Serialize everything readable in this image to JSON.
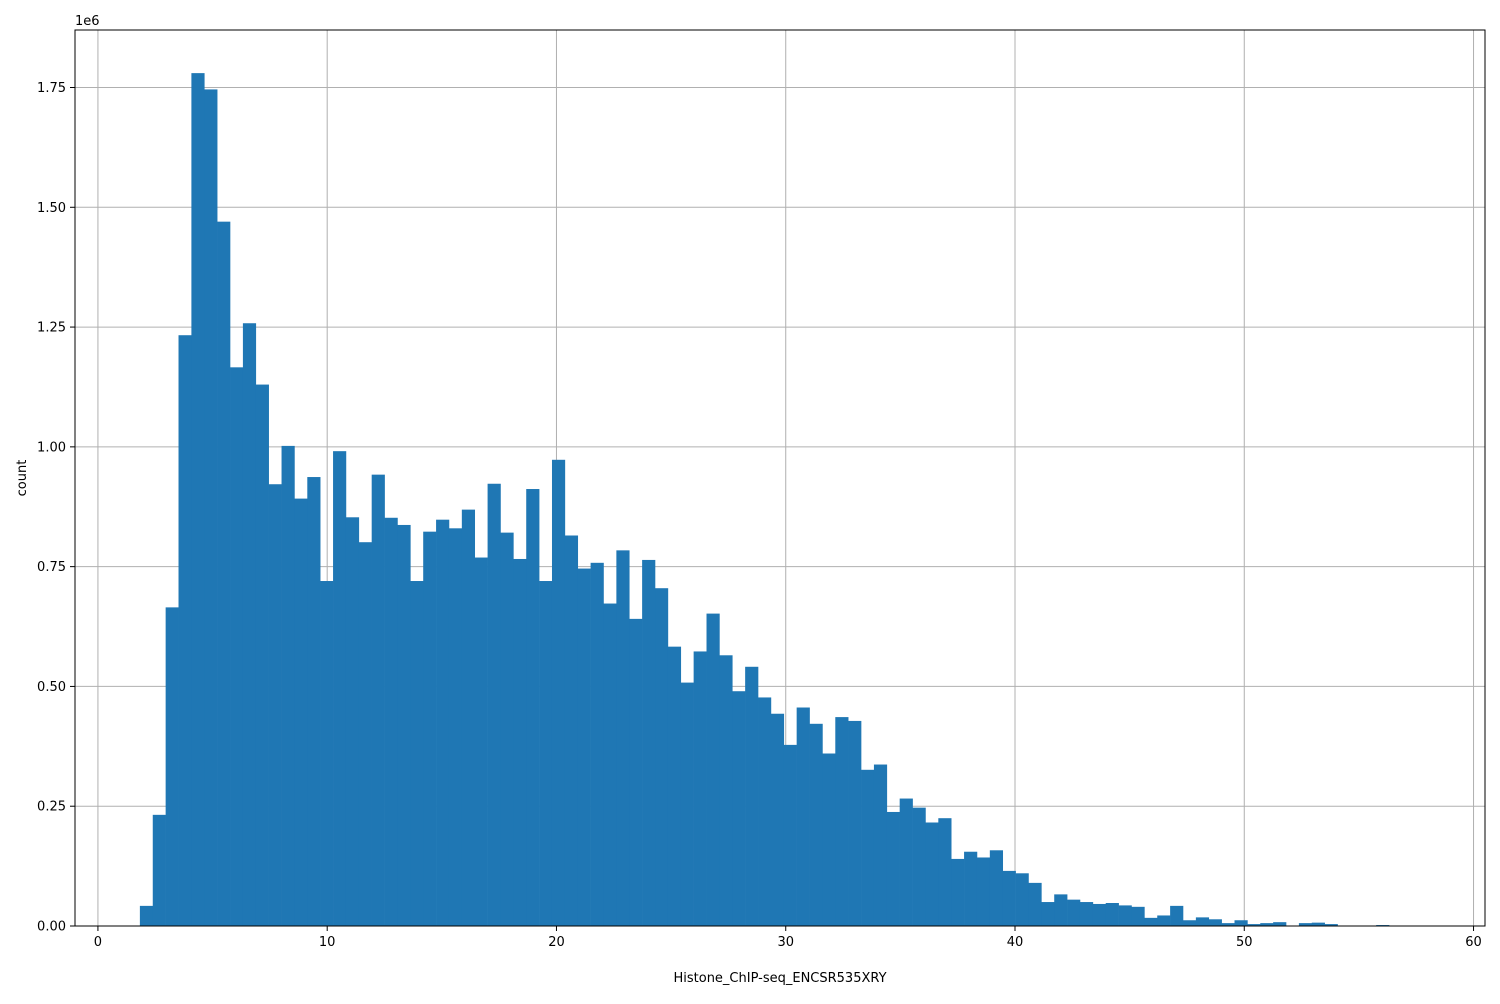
{
  "chart_data": {
    "type": "bar",
    "title": "",
    "xlabel": "Histone_ChIP-seq_ENCSR535XRY",
    "ylabel": "count",
    "y_multiplier": "1e6",
    "xlim": [
      -1,
      60.5
    ],
    "ylim": [
      0,
      1.87
    ],
    "grid": true,
    "bar_color": "#1f77b4",
    "x_ticks": [
      0,
      10,
      20,
      30,
      40,
      50,
      60
    ],
    "y_ticks": [
      0.0,
      0.25,
      0.5,
      0.75,
      1.0,
      1.25,
      1.5,
      1.75
    ],
    "x_tick_labels": [
      "0",
      "10",
      "20",
      "30",
      "40",
      "50",
      "60"
    ],
    "y_tick_labels": [
      "0.00",
      "0.25",
      "0.50",
      "0.75",
      "1.00",
      "1.25",
      "1.50",
      "1.75"
    ],
    "bin_start": 1.83,
    "bin_width": 0.5617,
    "values": [
      0.042,
      0.232,
      0.665,
      1.233,
      1.78,
      1.746,
      1.47,
      1.166,
      1.258,
      1.13,
      0.922,
      1.002,
      0.892,
      0.937,
      0.72,
      0.991,
      0.853,
      0.801,
      0.942,
      0.852,
      0.837,
      0.72,
      0.823,
      0.848,
      0.83,
      0.869,
      0.769,
      0.923,
      0.821,
      0.766,
      0.912,
      0.72,
      0.973,
      0.815,
      0.746,
      0.758,
      0.673,
      0.784,
      0.641,
      0.764,
      0.705,
      0.583,
      0.508,
      0.573,
      0.652,
      0.565,
      0.49,
      0.541,
      0.477,
      0.443,
      0.378,
      0.456,
      0.422,
      0.36,
      0.436,
      0.428,
      0.326,
      0.337,
      0.238,
      0.266,
      0.247,
      0.216,
      0.225,
      0.14,
      0.155,
      0.143,
      0.158,
      0.115,
      0.11,
      0.09,
      0.05,
      0.066,
      0.055,
      0.05,
      0.046,
      0.048,
      0.043,
      0.04,
      0.017,
      0.022,
      0.042,
      0.012,
      0.018,
      0.014,
      0.006,
      0.012,
      0.004,
      0.006,
      0.008,
      0.001,
      0.006,
      0.007,
      0.004,
      0.001,
      0.001,
      0.001,
      0.002,
      0.001,
      0.001,
      0.001
    ]
  }
}
